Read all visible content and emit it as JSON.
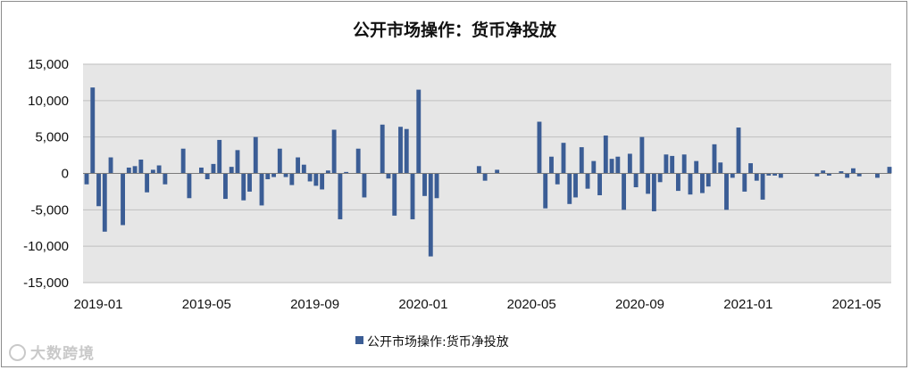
{
  "chart_data": {
    "type": "bar",
    "title": "公开市场操作：货币净投放",
    "xlabel": "",
    "ylabel": "",
    "ylim": [
      -15000,
      15000
    ],
    "yticks": [
      "15,000",
      "10,000",
      "5,000",
      "0",
      "-5,000",
      "-10,000",
      "-15,000"
    ],
    "yticks_values": [
      15000,
      10000,
      5000,
      0,
      -5000,
      -10000,
      -15000
    ],
    "xticks": [
      "2019-01",
      "2019-05",
      "2019-09",
      "2020-01",
      "2020-05",
      "2020-09",
      "2021-01",
      "2021-05"
    ],
    "grid": true,
    "legend_position": "bottom",
    "bar_color": "#3b5d95",
    "plot_bg": "#e6e6e6",
    "series": [
      {
        "name": "公开市场操作:货币净投放",
        "values": [
          -1500,
          11800,
          -4500,
          -8000,
          2200,
          0,
          -7100,
          800,
          1000,
          1900,
          -2600,
          500,
          1100,
          -1500,
          0,
          0,
          3400,
          -3400,
          0,
          800,
          -800,
          1300,
          4600,
          -3500,
          900,
          3200,
          -3700,
          -2500,
          5000,
          -4400,
          -800,
          -500,
          3400,
          -500,
          -1600,
          2200,
          1200,
          -1100,
          -1700,
          -2200,
          400,
          6000,
          -6300,
          200,
          0,
          3400,
          -3300,
          0,
          0,
          6700,
          -700,
          -5800,
          6400,
          6100,
          -6300,
          11500,
          -3100,
          -11400,
          -3400,
          0,
          0,
          0,
          0,
          0,
          0,
          1000,
          -1000,
          0,
          500,
          0,
          0,
          0,
          0,
          0,
          0,
          7100,
          -4800,
          2300,
          -1500,
          4200,
          -4200,
          -3300,
          3600,
          -2100,
          1700,
          -3000,
          5200,
          2000,
          2300,
          -5000,
          2700,
          -1900,
          5000,
          -2800,
          -5200,
          -1200,
          2600,
          2400,
          -2400,
          2600,
          -2900,
          1700,
          -2700,
          -1800,
          4000,
          1500,
          -5000,
          -600,
          6300,
          -2500,
          1400,
          -1000,
          -3600,
          -300,
          -300,
          -600,
          0,
          0,
          0,
          0,
          0,
          -400,
          400,
          -300,
          0,
          300,
          -600,
          700,
          -400,
          0,
          0,
          -600,
          0,
          900
        ]
      }
    ]
  },
  "watermark": "大数跨境"
}
